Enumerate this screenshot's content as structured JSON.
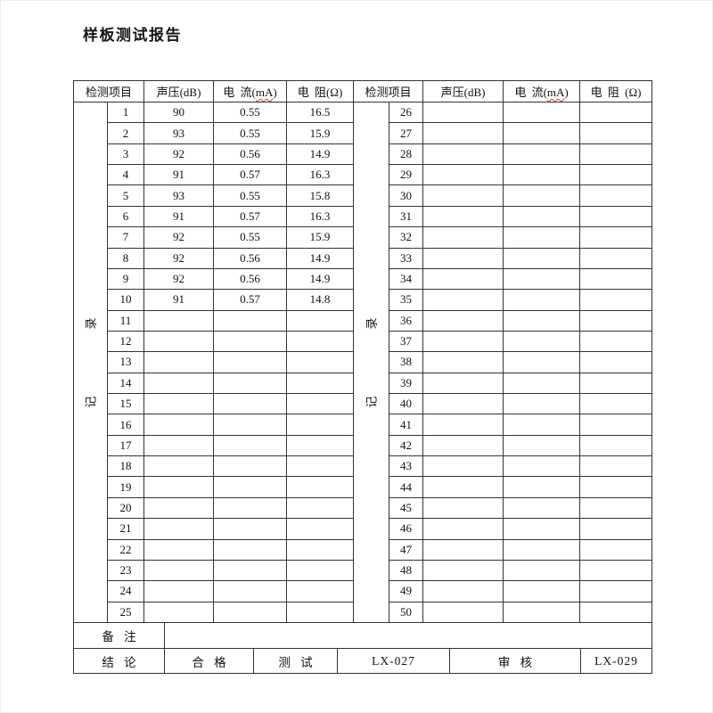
{
  "page": {
    "title": "样板测试报告"
  },
  "table": {
    "vertical_label": "记 录",
    "headers": {
      "item": "检测项目",
      "sound": "声压(dB)",
      "current_pre": "电 流(",
      "current_unit": "mA",
      "current_post": ")",
      "resistance_left": "电 阻(Ω)",
      "resistance_right": "电 阻 (Ω)"
    },
    "left_rows": [
      {
        "no": "1",
        "sound": "90",
        "current": "0.55",
        "resistance": "16.5"
      },
      {
        "no": "2",
        "sound": "93",
        "current": "0.55",
        "resistance": "15.9"
      },
      {
        "no": "3",
        "sound": "92",
        "current": "0.56",
        "resistance": "14.9"
      },
      {
        "no": "4",
        "sound": "91",
        "current": "0.57",
        "resistance": "16.3"
      },
      {
        "no": "5",
        "sound": "93",
        "current": "0.55",
        "resistance": "15.8"
      },
      {
        "no": "6",
        "sound": "91",
        "current": "0.57",
        "resistance": "16.3"
      },
      {
        "no": "7",
        "sound": "92",
        "current": "0.55",
        "resistance": "15.9"
      },
      {
        "no": "8",
        "sound": "92",
        "current": "0.56",
        "resistance": "14.9"
      },
      {
        "no": "9",
        "sound": "92",
        "current": "0.56",
        "resistance": "14.9"
      },
      {
        "no": "10",
        "sound": "91",
        "current": "0.57",
        "resistance": "14.8"
      },
      {
        "no": "11",
        "sound": "",
        "current": "",
        "resistance": ""
      },
      {
        "no": "12",
        "sound": "",
        "current": "",
        "resistance": ""
      },
      {
        "no": "13",
        "sound": "",
        "current": "",
        "resistance": ""
      },
      {
        "no": "14",
        "sound": "",
        "current": "",
        "resistance": ""
      },
      {
        "no": "15",
        "sound": "",
        "current": "",
        "resistance": ""
      },
      {
        "no": "16",
        "sound": "",
        "current": "",
        "resistance": ""
      },
      {
        "no": "17",
        "sound": "",
        "current": "",
        "resistance": ""
      },
      {
        "no": "18",
        "sound": "",
        "current": "",
        "resistance": ""
      },
      {
        "no": "19",
        "sound": "",
        "current": "",
        "resistance": ""
      },
      {
        "no": "20",
        "sound": "",
        "current": "",
        "resistance": ""
      },
      {
        "no": "21",
        "sound": "",
        "current": "",
        "resistance": ""
      },
      {
        "no": "22",
        "sound": "",
        "current": "",
        "resistance": ""
      },
      {
        "no": "23",
        "sound": "",
        "current": "",
        "resistance": ""
      },
      {
        "no": "24",
        "sound": "",
        "current": "",
        "resistance": ""
      },
      {
        "no": "25",
        "sound": "",
        "current": "",
        "resistance": ""
      }
    ],
    "right_rows": [
      {
        "no": "26",
        "sound": "",
        "current": "",
        "resistance": ""
      },
      {
        "no": "27",
        "sound": "",
        "current": "",
        "resistance": ""
      },
      {
        "no": "28",
        "sound": "",
        "current": "",
        "resistance": ""
      },
      {
        "no": "29",
        "sound": "",
        "current": "",
        "resistance": ""
      },
      {
        "no": "30",
        "sound": "",
        "current": "",
        "resistance": ""
      },
      {
        "no": "31",
        "sound": "",
        "current": "",
        "resistance": ""
      },
      {
        "no": "32",
        "sound": "",
        "current": "",
        "resistance": ""
      },
      {
        "no": "33",
        "sound": "",
        "current": "",
        "resistance": ""
      },
      {
        "no": "34",
        "sound": "",
        "current": "",
        "resistance": ""
      },
      {
        "no": "35",
        "sound": "",
        "current": "",
        "resistance": ""
      },
      {
        "no": "36",
        "sound": "",
        "current": "",
        "resistance": ""
      },
      {
        "no": "37",
        "sound": "",
        "current": "",
        "resistance": ""
      },
      {
        "no": "38",
        "sound": "",
        "current": "",
        "resistance": ""
      },
      {
        "no": "39",
        "sound": "",
        "current": "",
        "resistance": ""
      },
      {
        "no": "40",
        "sound": "",
        "current": "",
        "resistance": ""
      },
      {
        "no": "41",
        "sound": "",
        "current": "",
        "resistance": ""
      },
      {
        "no": "42",
        "sound": "",
        "current": "",
        "resistance": ""
      },
      {
        "no": "43",
        "sound": "",
        "current": "",
        "resistance": ""
      },
      {
        "no": "44",
        "sound": "",
        "current": "",
        "resistance": ""
      },
      {
        "no": "45",
        "sound": "",
        "current": "",
        "resistance": ""
      },
      {
        "no": "46",
        "sound": "",
        "current": "",
        "resistance": ""
      },
      {
        "no": "47",
        "sound": "",
        "current": "",
        "resistance": ""
      },
      {
        "no": "48",
        "sound": "",
        "current": "",
        "resistance": ""
      },
      {
        "no": "49",
        "sound": "",
        "current": "",
        "resistance": ""
      },
      {
        "no": "50",
        "sound": "",
        "current": "",
        "resistance": ""
      }
    ]
  },
  "footer": {
    "remark_label": "备 注",
    "remark_value": "",
    "conclusion_label": "结 论",
    "conclusion_value": "合 格",
    "test_label": "测 试",
    "test_value": "LX-027",
    "review_label": "审 核",
    "review_value": "LX-029"
  },
  "colors": {
    "border": "#333333",
    "text": "#111111",
    "spellcheck_underline": "#d03c3c",
    "page_background": "#ffffff"
  }
}
